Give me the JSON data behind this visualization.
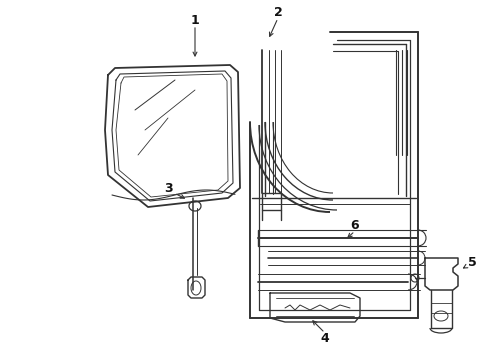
{
  "bg_color": "#ffffff",
  "line_color": "#333333",
  "label_color": "#111111",
  "figsize": [
    4.9,
    3.6
  ],
  "dpi": 100
}
